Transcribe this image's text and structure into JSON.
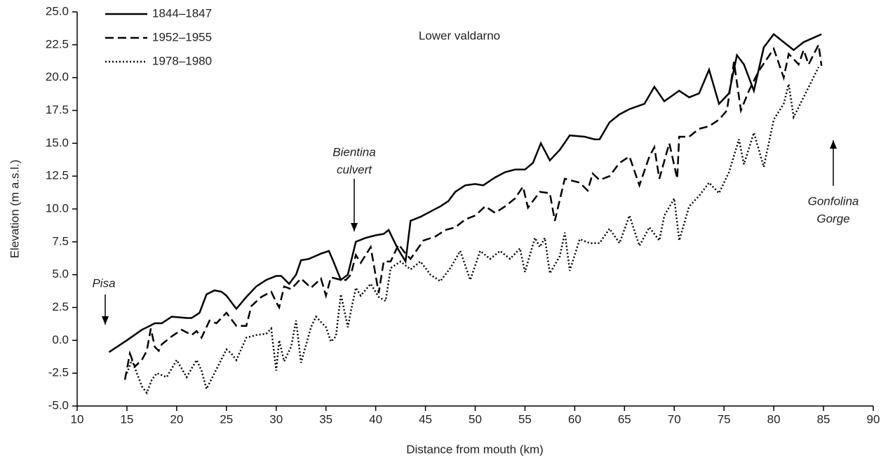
{
  "chart_data": {
    "type": "line",
    "xlabel": "Distance from mouth (km)",
    "ylabel": "Elevation (m a.s.l.)",
    "annotations": [
      "Lower valdarno",
      "Pisa",
      "Bientina",
      "culvert",
      "Gonfolina",
      "Gorge"
    ],
    "xlim": [
      10,
      90
    ],
    "xticks": [
      10,
      15,
      20,
      25,
      30,
      35,
      40,
      45,
      50,
      55,
      60,
      65,
      70,
      75,
      80,
      85,
      90
    ],
    "ylim": [
      -5,
      25
    ],
    "yticks": [
      {
        "value": -5,
        "label": "-5.0"
      },
      {
        "value": -2.5,
        "label": "-2.5"
      },
      {
        "value": 0,
        "label": "0.0"
      },
      {
        "value": 2.5,
        "label": "2.5"
      },
      {
        "value": 5,
        "label": "5.0"
      },
      {
        "value": 7.5,
        "label": "7.5"
      },
      {
        "value": 10,
        "label": "10.0"
      },
      {
        "value": 12.5,
        "label": "12.5"
      },
      {
        "value": 15,
        "label": "15.0"
      },
      {
        "value": 17.5,
        "label": "17.5"
      },
      {
        "value": 20,
        "label": "20.0"
      },
      {
        "value": 22.5,
        "label": "22.5"
      },
      {
        "value": 25,
        "label": "25.0"
      }
    ],
    "legend": "upper left",
    "series": [
      {
        "name": "1844–1847",
        "color": "#000000",
        "style": "solid",
        "x": [
          13.2,
          15,
          16.5,
          17.3,
          17.8,
          18.5,
          19.5,
          21,
          21.5,
          22.3,
          23,
          23.8,
          24.5,
          25,
          26,
          27,
          28,
          29,
          30,
          30.5,
          31.3,
          32,
          32.5,
          33.3,
          34.5,
          35.3,
          35.7,
          36.5,
          37.2,
          38,
          39,
          40,
          40.8,
          41.3,
          42.2,
          43,
          43.5,
          44.5,
          45.5,
          46.5,
          47.3,
          48,
          49,
          50,
          50.8,
          52,
          53,
          54,
          55,
          55.8,
          56.6,
          57.5,
          58.5,
          59.5,
          61,
          62,
          62.5,
          63.5,
          64.5,
          65.5,
          67,
          68,
          69,
          70.5,
          71.5,
          72.5,
          73.5,
          74.5,
          75.5,
          76.3,
          77,
          78,
          79,
          80,
          81,
          82,
          83,
          84.8
        ],
        "values": [
          -0.9,
          0,
          0.8,
          1.1,
          1.3,
          1.3,
          1.8,
          1.7,
          1.7,
          2.1,
          3.5,
          3.8,
          3.7,
          3.4,
          2.4,
          3.3,
          4.1,
          4.6,
          4.9,
          4.9,
          4.3,
          5,
          6.1,
          6.2,
          6.6,
          6.8,
          6.1,
          4.6,
          5,
          7.5,
          7.8,
          8,
          8.1,
          8.4,
          7,
          6,
          9.1,
          9.4,
          9.8,
          10.2,
          10.6,
          11.3,
          11.8,
          11.9,
          11.8,
          12.4,
          12.8,
          13,
          13,
          13.5,
          15,
          13.7,
          14.5,
          15.6,
          15.5,
          15.3,
          15.3,
          16.6,
          17.2,
          17.6,
          18,
          19.3,
          18.2,
          19,
          18.5,
          18.8,
          20.6,
          18,
          18.8,
          21.7,
          21,
          19,
          22.3,
          23.3,
          22.7,
          22.1,
          22.7,
          23.3
        ]
      },
      {
        "name": "1952–1955",
        "color": "#000000",
        "style": "dashed",
        "x": [
          14.8,
          15.3,
          15.8,
          16.5,
          17,
          17.4,
          17.8,
          18.2,
          18.5,
          19.5,
          20.5,
          21.5,
          22,
          22.5,
          23.3,
          24,
          25,
          25.5,
          26,
          27,
          27.5,
          28.5,
          29.5,
          30,
          30.3,
          30.8,
          31.5,
          32.5,
          33.5,
          34.5,
          35,
          35.5,
          36.5,
          37,
          37.5,
          38,
          38.5,
          39.5,
          40.3,
          40.8,
          41.5,
          42.3,
          43,
          43.5,
          44.8,
          46,
          47,
          48,
          49,
          50,
          51,
          52,
          53,
          54,
          54.8,
          55.3,
          56.5,
          57.5,
          58,
          59,
          60.5,
          61.3,
          61.8,
          62.5,
          63.5,
          64.5,
          65.5,
          66.5,
          67.5,
          68,
          68.5,
          69.5,
          70.3,
          70.5,
          71.5,
          72.5,
          73.5,
          74.5,
          75.3,
          76,
          76.7,
          77.5,
          78.5,
          80,
          81,
          81.5,
          82.5,
          83,
          83.5,
          84.5,
          84.8
        ],
        "values": [
          -3,
          -1,
          -2,
          -1.5,
          -0.8,
          0.9,
          -0.5,
          -0.8,
          -0.3,
          0.3,
          0.8,
          0.4,
          0.7,
          0.2,
          1.5,
          1.3,
          2.1,
          1.6,
          1.1,
          1.1,
          2.6,
          3.3,
          3.7,
          2.9,
          2.5,
          4.1,
          3.9,
          4.7,
          4,
          4.7,
          3.4,
          4.8,
          4.6,
          4.6,
          5,
          6.5,
          5.9,
          7.1,
          3.6,
          6,
          6,
          7.3,
          6.6,
          6.2,
          7.6,
          7.9,
          8.4,
          8.6,
          9.2,
          9.5,
          10.2,
          9.7,
          10.2,
          10.8,
          11.7,
          10.1,
          11.3,
          11.2,
          9.1,
          12.3,
          12,
          11.4,
          12.7,
          12.2,
          12.5,
          13.5,
          14,
          11.8,
          14,
          14.7,
          12.3,
          15,
          12.3,
          15.5,
          15.5,
          16.1,
          16.3,
          16.8,
          17.5,
          21.2,
          17.5,
          19,
          20.5,
          22.2,
          20,
          21.8,
          21,
          22.1,
          21,
          22.5,
          20.9
        ]
      },
      {
        "name": "1978–1980",
        "color": "#000000",
        "style": "dotted",
        "x": [
          15,
          15.5,
          16.5,
          17,
          17.5,
          18,
          19,
          20,
          21,
          22,
          22.5,
          23,
          24,
          25,
          25.5,
          26,
          27,
          28,
          29,
          29.5,
          30,
          30.3,
          30.8,
          31.5,
          32,
          32.5,
          33.5,
          34,
          35,
          35.5,
          36,
          36.5,
          37.2,
          37.5,
          38,
          38.5,
          39.5,
          40.3,
          41,
          41.5,
          42.5,
          43.5,
          44.5,
          45.5,
          46.5,
          47.5,
          48.5,
          49.5,
          50.5,
          51.5,
          52.5,
          53.5,
          54.5,
          55,
          56,
          56.5,
          57,
          57.5,
          58.5,
          59,
          59.5,
          60.5,
          61.5,
          62.5,
          63.5,
          64.5,
          65.5,
          66.5,
          67.5,
          68.5,
          69,
          70,
          70.5,
          71.5,
          72.5,
          73.5,
          74.5,
          75.5,
          76.5,
          77,
          78,
          79,
          80,
          81,
          81.5,
          82,
          83,
          84.5
        ],
        "values": [
          -2.5,
          -1.5,
          -3.5,
          -4,
          -3,
          -2.5,
          -2.8,
          -1.5,
          -2.8,
          -1.5,
          -2.3,
          -3.7,
          -2.2,
          -0.7,
          -1,
          -1.5,
          0.2,
          0.4,
          0.5,
          0.9,
          -2.3,
          0,
          -1.6,
          -0.5,
          1.5,
          -1.7,
          1,
          1.8,
          1,
          -0.1,
          0.3,
          3.5,
          1,
          2.2,
          4,
          3.4,
          4.3,
          3.3,
          3,
          5.5,
          6,
          5.4,
          6,
          5,
          4.5,
          5.5,
          6.8,
          4.6,
          6.8,
          6.2,
          6.8,
          6.2,
          7,
          5.2,
          7.8,
          7.1,
          7.8,
          5.1,
          6.4,
          8.2,
          5.3,
          7.7,
          7.4,
          7.4,
          8.5,
          7.4,
          9.5,
          7.2,
          8.6,
          7.6,
          9.5,
          10.8,
          7.6,
          10.2,
          11,
          12,
          11.2,
          12.8,
          15.3,
          13.4,
          15.8,
          13.2,
          16.8,
          18,
          19.5,
          17,
          18.5,
          20.8
        ]
      }
    ]
  }
}
